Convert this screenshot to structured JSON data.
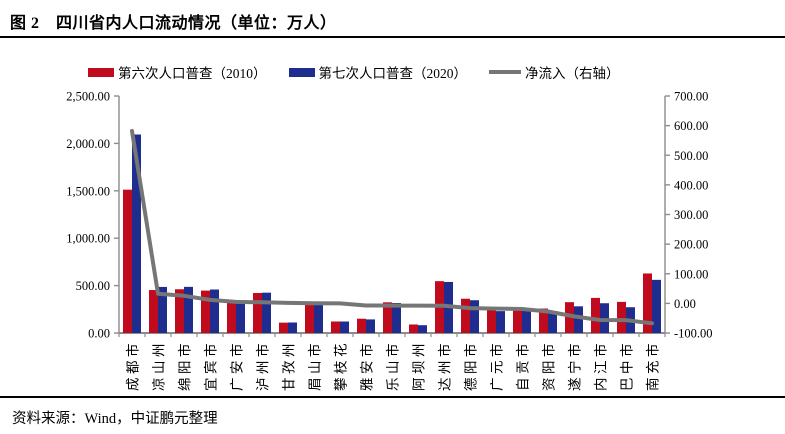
{
  "figure": {
    "title": "图 2　四川省内人口流动情况（单位：万人）",
    "source": "资料来源：Wind，中证鹏元整理"
  },
  "colors": {
    "census2010_red": "#C00B1E",
    "census2020_blue": "#1F2E8E",
    "net_line_gray": "#767676",
    "axis_gray": "#8C8C8C",
    "rule_black": "#000000"
  },
  "legend": [
    {
      "label": "第六次人口普查（2010）",
      "type": "swatch",
      "color": "#C00B1E"
    },
    {
      "label": "第七次人口普查（2020）",
      "type": "swatch",
      "color": "#1F2E8E"
    },
    {
      "label": "净流入（右轴）",
      "type": "line",
      "color": "#767676"
    }
  ],
  "chart_data": {
    "type": "bar",
    "subtype": "grouped-bars-with-line-on-secondary-axis",
    "title": "四川省内人口流动情况",
    "unit": "万人",
    "grid": false,
    "legend_position": "top",
    "categories": [
      "成都市",
      "凉山州",
      "绵阳市",
      "宜宾市",
      "广安市",
      "泸州市",
      "甘孜州",
      "眉山市",
      "攀枝花",
      "雅安市",
      "乐山市",
      "阿坝州",
      "达州市",
      "德阳市",
      "广元市",
      "自贡市",
      "资阳市",
      "遂宁市",
      "内江市",
      "巴中市",
      "南充市"
    ],
    "series": [
      {
        "name": "第六次人口普查（2010）",
        "type": "bar",
        "axis": "left",
        "color": "#C00B1E",
        "values": [
          1511.9,
          453.29,
          461.38,
          447.19,
          320.51,
          421.83,
          109.19,
          295.02,
          121.41,
          150.7,
          323.59,
          89.87,
          546.84,
          361.57,
          248.41,
          267.89,
          258.12,
          325.25,
          370.27,
          328.35,
          627.86
        ]
      },
      {
        "name": "第七次人口普查（2020）",
        "type": "bar",
        "axis": "left",
        "color": "#1F2E8E",
        "values": [
          2093.78,
          485.86,
          486.84,
          458.89,
          325.45,
          425.41,
          110.75,
          295.55,
          121.22,
          143.46,
          316.04,
          82.26,
          538.54,
          345.62,
          230.71,
          248.93,
          230.83,
          281.4,
          314.07,
          271.83,
          560.76
        ]
      },
      {
        "name": "净流入（右轴）",
        "type": "line",
        "axis": "right",
        "color": "#767676",
        "values": [
          581.88,
          32.57,
          25.46,
          11.7,
          4.94,
          3.58,
          1.56,
          0.53,
          -0.19,
          -7.24,
          -7.55,
          -7.61,
          -8.3,
          -15.95,
          -17.7,
          -18.96,
          -27.29,
          -43.85,
          -56.2,
          -56.52,
          -67.1
        ]
      }
    ],
    "left_axis": {
      "min": 0,
      "max": 2500,
      "step": 500,
      "ticks": [
        0,
        500,
        1000,
        1500,
        2000,
        2500
      ],
      "tick_labels": [
        "0.00",
        "500.00",
        "1,000.00",
        "1,500.00",
        "2,000.00",
        "2,500.00"
      ]
    },
    "right_axis": {
      "min": -100,
      "max": 700,
      "step": 100,
      "ticks": [
        -100,
        0,
        100,
        200,
        300,
        400,
        500,
        600,
        700
      ],
      "tick_labels": [
        "-100.00",
        "0.00",
        "100.00",
        "200.00",
        "300.00",
        "400.00",
        "500.00",
        "600.00",
        "700.00"
      ]
    }
  }
}
